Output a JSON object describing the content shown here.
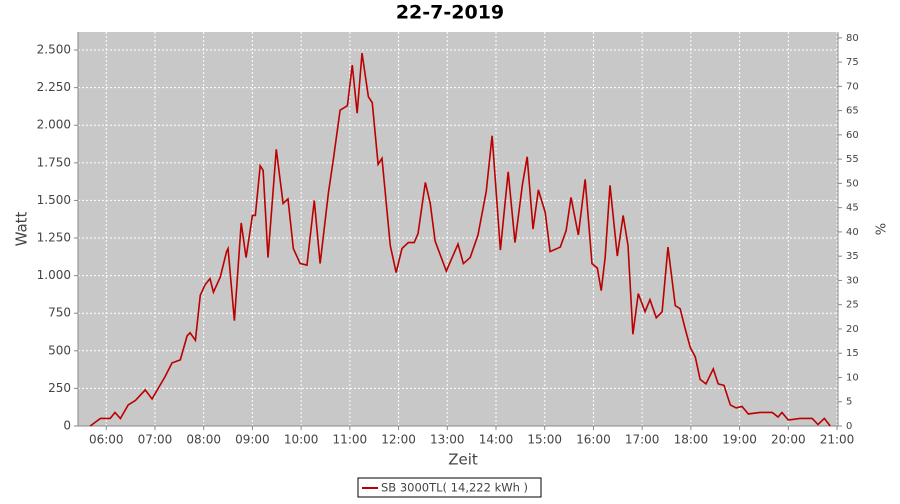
{
  "chart_data": {
    "type": "line",
    "title": "22-7-2019",
    "xlabel": "Zeit",
    "ylabel": "Watt",
    "y2label": "%",
    "x": [
      5.67,
      5.88,
      6.08,
      6.18,
      6.29,
      6.45,
      6.6,
      6.8,
      6.94,
      7.21,
      7.35,
      7.52,
      7.66,
      7.72,
      7.83,
      7.93,
      8.03,
      8.13,
      8.2,
      8.34,
      8.47,
      8.5,
      8.63,
      8.77,
      8.87,
      9.0,
      9.06,
      9.16,
      9.22,
      9.32,
      9.49,
      9.63,
      9.73,
      9.84,
      9.98,
      10.12,
      10.27,
      10.39,
      10.56,
      10.66,
      10.8,
      10.95,
      11.05,
      11.15,
      11.25,
      11.38,
      11.46,
      11.58,
      11.66,
      11.83,
      11.95,
      12.07,
      12.2,
      12.32,
      12.4,
      12.55,
      12.65,
      12.75,
      12.98,
      13.1,
      13.22,
      13.33,
      13.47,
      13.63,
      13.8,
      13.92,
      14.09,
      14.25,
      14.39,
      14.54,
      14.64,
      14.76,
      14.87,
      15.01,
      15.11,
      15.32,
      15.44,
      15.54,
      15.69,
      15.83,
      15.97,
      16.08,
      16.16,
      16.24,
      16.34,
      16.49,
      16.61,
      16.71,
      16.81,
      16.92,
      17.06,
      17.16,
      17.29,
      17.41,
      17.53,
      17.68,
      17.78,
      17.88,
      17.99,
      18.09,
      18.19,
      18.31,
      18.46,
      18.56,
      18.68,
      18.81,
      18.93,
      19.05,
      19.18,
      19.42,
      19.67,
      19.79,
      19.87,
      20.0,
      20.24,
      20.49,
      20.61,
      20.74,
      20.86
    ],
    "series": [
      {
        "name": "SB 3000TL( 14,222 kWh )",
        "color": "#bb0000",
        "values": [
          0,
          50,
          50,
          90,
          50,
          140,
          170,
          240,
          180,
          330,
          420,
          440,
          600,
          620,
          570,
          870,
          940,
          980,
          890,
          990,
          1160,
          1180,
          700,
          1350,
          1120,
          1400,
          1400,
          1730,
          1700,
          1120,
          1840,
          1480,
          1510,
          1180,
          1080,
          1070,
          1500,
          1080,
          1550,
          1770,
          2100,
          2130,
          2400,
          2080,
          2480,
          2190,
          2150,
          1740,
          1780,
          1200,
          1020,
          1180,
          1220,
          1220,
          1280,
          1620,
          1480,
          1230,
          1030,
          1120,
          1210,
          1080,
          1120,
          1270,
          1560,
          1930,
          1170,
          1690,
          1220,
          1600,
          1790,
          1310,
          1570,
          1420,
          1160,
          1190,
          1300,
          1520,
          1270,
          1640,
          1080,
          1050,
          900,
          1120,
          1600,
          1130,
          1400,
          1200,
          610,
          880,
          760,
          840,
          720,
          760,
          1190,
          800,
          780,
          650,
          520,
          460,
          310,
          280,
          380,
          280,
          270,
          140,
          120,
          130,
          80,
          90,
          90,
          60,
          90,
          40,
          50,
          50,
          10,
          50,
          0
        ]
      }
    ],
    "xlim": [
      5.42,
      21.02
    ],
    "xticks": [
      {
        "value": 6,
        "label": "06:00"
      },
      {
        "value": 7,
        "label": "07:00"
      },
      {
        "value": 8,
        "label": "08:00"
      },
      {
        "value": 9,
        "label": "09:00"
      },
      {
        "value": 10,
        "label": "10:00"
      },
      {
        "value": 11,
        "label": "11:00"
      },
      {
        "value": 12,
        "label": "12:00"
      },
      {
        "value": 13,
        "label": "13:00"
      },
      {
        "value": 14,
        "label": "14:00"
      },
      {
        "value": 15,
        "label": "15:00"
      },
      {
        "value": 16,
        "label": "16:00"
      },
      {
        "value": 17,
        "label": "17:00"
      },
      {
        "value": 18,
        "label": "18:00"
      },
      {
        "value": 19,
        "label": "19:00"
      },
      {
        "value": 20,
        "label": "20:00"
      },
      {
        "value": 21,
        "label": "21:00"
      }
    ],
    "ylim": [
      0,
      2620
    ],
    "yticks": [
      0,
      250,
      500,
      750,
      {
        "value": 1000,
        "label": "1.000"
      },
      {
        "value": 1250,
        "label": "1.250"
      },
      {
        "value": 1500,
        "label": "1.500"
      },
      {
        "value": 1750,
        "label": "1.750"
      },
      {
        "value": 2000,
        "label": "2.000"
      },
      {
        "value": 2250,
        "label": "2.250"
      },
      {
        "value": 2500,
        "label": "2.500"
      }
    ],
    "y2lim": [
      0,
      81.2
    ],
    "y2ticks": [
      0,
      5,
      10,
      15,
      20,
      25,
      30,
      35,
      40,
      45,
      50,
      55,
      60,
      65,
      70,
      75,
      80
    ],
    "grid": true
  }
}
